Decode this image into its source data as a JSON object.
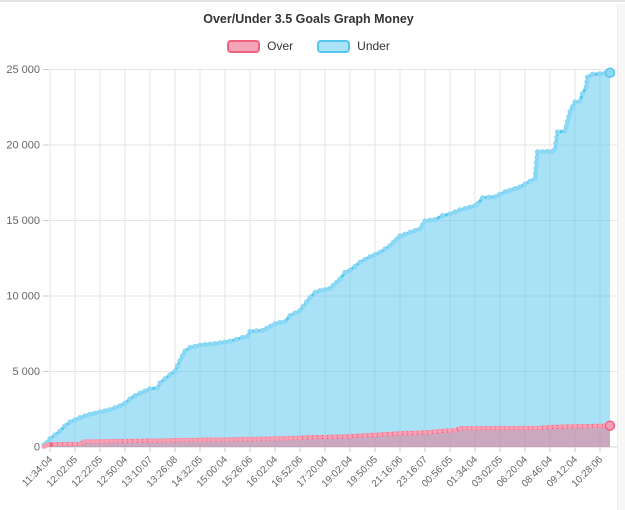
{
  "chart_data": {
    "type": "area",
    "title": "Over/Under 3.5 Goals Graph Money",
    "xlabel": "",
    "ylabel": "",
    "ylim": [
      0,
      25000
    ],
    "grid": true,
    "legend_position": "top",
    "x_labels": [
      "11:34:04",
      "12:02:05",
      "12:22:05",
      "12:50:04",
      "13:10:07",
      "13:26:08",
      "14:32:05",
      "15:00:04",
      "15:26:06",
      "16:02:04",
      "16:52:06",
      "17:20:04",
      "19:02:04",
      "19:50:05",
      "21:16:06",
      "23:16:07",
      "00:56:05",
      "01:34:04",
      "03:02:05",
      "06:20:04",
      "08:46:04",
      "09:12:04",
      "10:28:06"
    ],
    "y_ticks": [
      {
        "value": 0,
        "label": "0"
      },
      {
        "value": 5000,
        "label": "5 000"
      },
      {
        "value": 10000,
        "label": "10 000"
      },
      {
        "value": 15000,
        "label": "15 000"
      },
      {
        "value": 20000,
        "label": "20 000"
      },
      {
        "value": 25000,
        "label": "25 000"
      }
    ],
    "style": {
      "grid_color": "#E6E6E6",
      "zero_line_color": "#D6D6D6",
      "tick_color": "#C8C8C8",
      "label_color": "#666666",
      "title_color": "#333333"
    },
    "series": [
      {
        "name": "Over",
        "line_color": "#F0617F",
        "marker_color": "#F59FB4",
        "legend_fill": "#F5A5B9",
        "area_color": "rgba(240,97,127,0.45)",
        "line_width": 4,
        "marker_radius": 2.4,
        "points": [
          [
            -0.24,
            30
          ],
          [
            -0.1,
            150
          ],
          [
            0.2,
            190
          ],
          [
            1.2,
            200
          ],
          [
            1.35,
            360
          ],
          [
            2.8,
            390
          ],
          [
            4.0,
            420
          ],
          [
            6.0,
            470
          ],
          [
            8.0,
            520
          ],
          [
            10.0,
            600
          ],
          [
            10.4,
            640
          ],
          [
            11.6,
            680
          ],
          [
            12.4,
            750
          ],
          [
            13.2,
            820
          ],
          [
            14.0,
            900
          ],
          [
            14.8,
            950
          ],
          [
            15.2,
            990
          ],
          [
            15.8,
            1080
          ],
          [
            16.2,
            1100
          ],
          [
            16.4,
            1230
          ],
          [
            19.6,
            1260
          ],
          [
            20.0,
            1320
          ],
          [
            20.6,
            1350
          ],
          [
            22.0,
            1400
          ],
          [
            22.4,
            1410
          ]
        ]
      },
      {
        "name": "Under",
        "line_color": "#54C6EF",
        "marker_color": "#8BD8F5",
        "legend_fill": "#ABE2F8",
        "area_color": "rgba(91,200,238,0.52)",
        "line_width": 3,
        "marker_radius": 2.6,
        "points": [
          [
            -0.24,
            150
          ],
          [
            -0.12,
            300
          ],
          [
            0,
            550
          ],
          [
            0.2,
            800
          ],
          [
            0.4,
            1050
          ],
          [
            0.6,
            1400
          ],
          [
            0.8,
            1650
          ],
          [
            1.0,
            1800
          ],
          [
            1.2,
            1950
          ],
          [
            1.6,
            2170
          ],
          [
            2.0,
            2320
          ],
          [
            2.4,
            2480
          ],
          [
            2.8,
            2720
          ],
          [
            3.0,
            2900
          ],
          [
            3.2,
            3180
          ],
          [
            3.4,
            3400
          ],
          [
            3.6,
            3560
          ],
          [
            4.0,
            3850
          ],
          [
            4.3,
            3920
          ],
          [
            4.4,
            4240
          ],
          [
            4.6,
            4510
          ],
          [
            4.8,
            4780
          ],
          [
            5.0,
            5020
          ],
          [
            5.2,
            5730
          ],
          [
            5.4,
            6350
          ],
          [
            5.6,
            6590
          ],
          [
            6.0,
            6750
          ],
          [
            6.6,
            6850
          ],
          [
            7.2,
            7000
          ],
          [
            7.7,
            7250
          ],
          [
            7.9,
            7320
          ],
          [
            8.0,
            7650
          ],
          [
            8.5,
            7720
          ],
          [
            9.0,
            8150
          ],
          [
            9.2,
            8260
          ],
          [
            9.4,
            8300
          ],
          [
            9.6,
            8700
          ],
          [
            10.0,
            9030
          ],
          [
            10.4,
            9900
          ],
          [
            10.6,
            10240
          ],
          [
            10.8,
            10350
          ],
          [
            11.2,
            10500
          ],
          [
            11.6,
            11120
          ],
          [
            11.8,
            11560
          ],
          [
            12.0,
            11700
          ],
          [
            12.4,
            12230
          ],
          [
            12.8,
            12600
          ],
          [
            13.2,
            12890
          ],
          [
            13.6,
            13330
          ],
          [
            14.0,
            13980
          ],
          [
            14.4,
            14210
          ],
          [
            14.8,
            14450
          ],
          [
            15.0,
            14980
          ],
          [
            15.4,
            15060
          ],
          [
            15.7,
            15320
          ],
          [
            16.0,
            15430
          ],
          [
            16.4,
            15700
          ],
          [
            17.0,
            15980
          ],
          [
            17.1,
            16090
          ],
          [
            17.3,
            16500
          ],
          [
            17.8,
            16560
          ],
          [
            18.2,
            16900
          ],
          [
            18.4,
            17000
          ],
          [
            18.8,
            17220
          ],
          [
            19.2,
            17600
          ],
          [
            19.4,
            17770
          ],
          [
            19.5,
            19540
          ],
          [
            20.1,
            19580
          ],
          [
            20.2,
            19720
          ],
          [
            20.3,
            20860
          ],
          [
            20.6,
            20930
          ],
          [
            20.8,
            22190
          ],
          [
            20.9,
            22520
          ],
          [
            21.0,
            22850
          ],
          [
            21.2,
            22900
          ],
          [
            21.3,
            23400
          ],
          [
            21.45,
            23840
          ],
          [
            21.5,
            24500
          ],
          [
            21.7,
            24680
          ],
          [
            22.0,
            24720
          ],
          [
            22.4,
            24780
          ]
        ]
      }
    ]
  }
}
